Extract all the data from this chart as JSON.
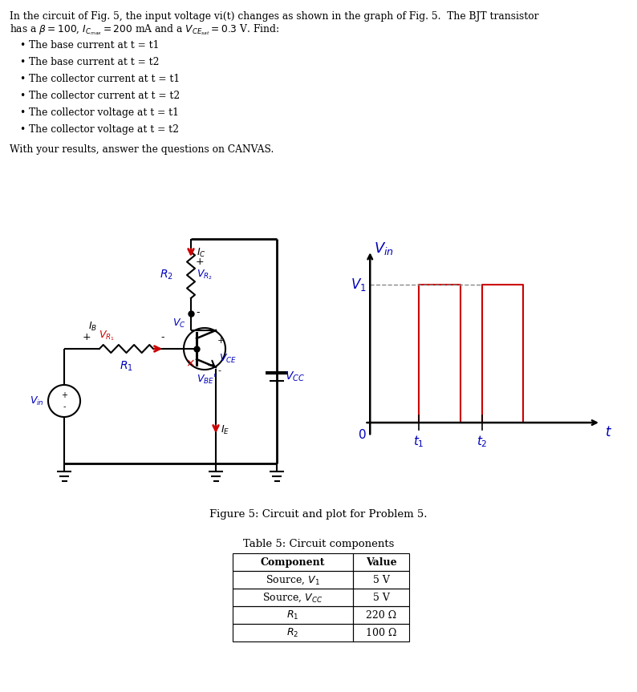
{
  "bg_color": "#ffffff",
  "black": "#000000",
  "blue": "#0000bb",
  "red": "#cc0000",
  "gray": "#888888",
  "title_line1": "In the circuit of Fig. 5, the input voltage vi(t) changes as shown in the graph of Fig. 5.  The BJT transistor",
  "title_line2": "has a $\\beta = 100$, $I_{C_{max}} = 200$ mA and a $V_{CE_{sat}} = 0.3$ V. Find:",
  "bullets": [
    "The base current at t = t1",
    "The base current at t = t2",
    "The collector current at t = t1",
    "The collector current at t = t2",
    "The collector voltage at t = t1",
    "The collector voltage at t = t2"
  ],
  "canvas_text": "With your results, answer the questions on CANVAS.",
  "figure_caption": "Figure 5: Circuit and plot for Problem 5.",
  "table_title": "Table 5: Circuit components",
  "table_headers": [
    "Component",
    "Value"
  ],
  "table_rows": [
    [
      "Source, $V_1$",
      "5 V"
    ],
    [
      "Source, $V_{CC}$",
      "5 V"
    ],
    [
      "$R_1$",
      "220 Ω"
    ],
    [
      "$R_2$",
      "100 Ω"
    ]
  ]
}
